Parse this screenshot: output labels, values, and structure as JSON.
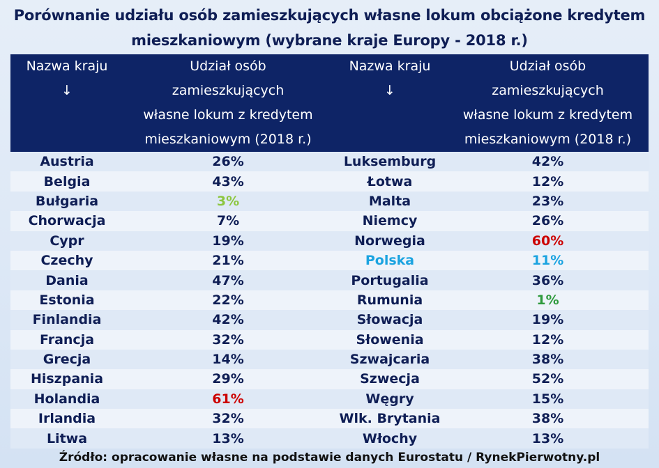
{
  "title_line1": "Porównanie udziału osób zamieszkujących własne lokum obciążone kredytem",
  "title_line2": "mieszkaniowym (wybrane kraje Europy - 2018 r.)",
  "header": {
    "country_label": "Nazwa kraju",
    "arrow": "↓",
    "share_line1": "Udział osób",
    "share_line2": "zamieszkujących",
    "share_line3": "własne lokum z kredytem",
    "share_line4": "mieszkaniowym (2018 r.)"
  },
  "colors": {
    "header_bg": "#0e2466",
    "text": "#0f1e55",
    "low_green": "#8cc63f",
    "high_red": "#cc0000",
    "poland_blue": "#1aa3e0",
    "min_green": "#2e9a3c"
  },
  "rows": [
    {
      "country_left": "Austria",
      "value_left": "26%",
      "country_right": "Luksemburg",
      "value_right": "42%"
    },
    {
      "country_left": "Belgia",
      "value_left": "43%",
      "country_right": "Łotwa",
      "value_right": "12%"
    },
    {
      "country_left": "Bułgaria",
      "value_left": "3%",
      "country_right": "Malta",
      "value_right": "23%"
    },
    {
      "country_left": "Chorwacja",
      "value_left": "7%",
      "country_right": "Niemcy",
      "value_right": "26%"
    },
    {
      "country_left": "Cypr",
      "value_left": "19%",
      "country_right": "Norwegia",
      "value_right": "60%"
    },
    {
      "country_left": "Czechy",
      "value_left": "21%",
      "country_right": "Polska",
      "value_right": "11%"
    },
    {
      "country_left": "Dania",
      "value_left": "47%",
      "country_right": "Portugalia",
      "value_right": "36%"
    },
    {
      "country_left": "Estonia",
      "value_left": "22%",
      "country_right": "Rumunia",
      "value_right": "1%"
    },
    {
      "country_left": "Finlandia",
      "value_left": "42%",
      "country_right": "Słowacja",
      "value_right": "19%"
    },
    {
      "country_left": "Francja",
      "value_left": "32%",
      "country_right": "Słowenia",
      "value_right": "12%"
    },
    {
      "country_left": "Grecja",
      "value_left": "14%",
      "country_right": "Szwajcaria",
      "value_right": "38%"
    },
    {
      "country_left": "Hiszpania",
      "value_left": "29%",
      "country_right": "Szwecja",
      "value_right": "52%"
    },
    {
      "country_left": "Holandia",
      "value_left": "61%",
      "country_right": "Węgry",
      "value_right": "15%"
    },
    {
      "country_left": "Irlandia",
      "value_left": "32%",
      "country_right": "Wlk. Brytania",
      "value_right": "38%"
    },
    {
      "country_left": "Litwa",
      "value_left": "13%",
      "country_right": "Włochy",
      "value_right": "13%"
    }
  ],
  "source": "Źródło: opracowanie własne na podstawie danych Eurostatu / RynekPierwotny.pl"
}
